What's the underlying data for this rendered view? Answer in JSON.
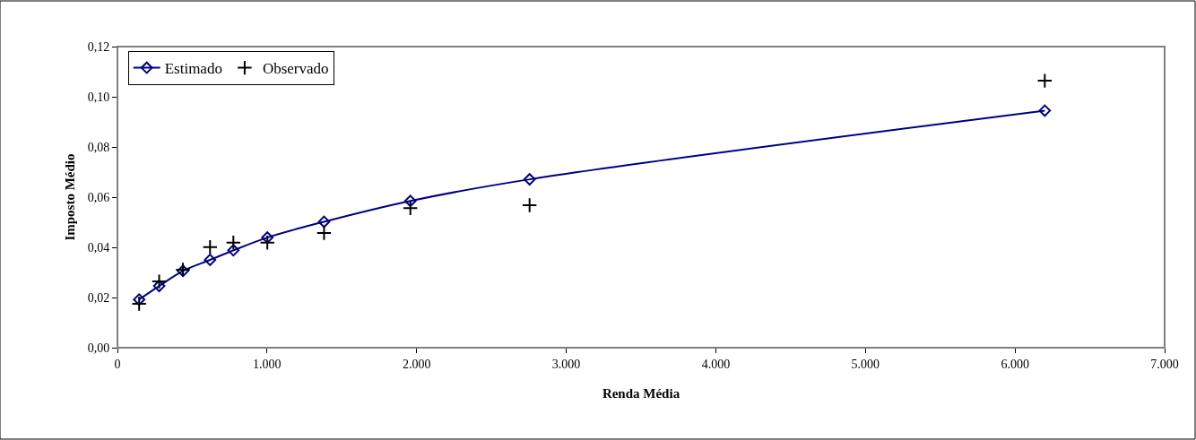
{
  "chart_data": {
    "type": "line",
    "xlabel": "Renda Média",
    "ylabel": "Imposto Médio",
    "x": [
      145,
      279,
      438,
      619,
      775,
      1002,
      1381,
      1958,
      2755,
      6199
    ],
    "series": [
      {
        "name": "Estimado",
        "color": "#000080",
        "marker": "diamond",
        "values": [
          0.0192,
          0.0246,
          0.0306,
          0.035,
          0.0388,
          0.0439,
          0.0502,
          0.0585,
          0.0671,
          0.0945
        ]
      },
      {
        "name": "Observado",
        "type": "scatter",
        "color": "#000000",
        "marker": "cross",
        "values": [
          0.0175,
          0.0264,
          0.0311,
          0.0401,
          0.0419,
          0.0419,
          0.0457,
          0.0556,
          0.0568,
          0.1064
        ]
      }
    ],
    "xlim": [
      0,
      7000
    ],
    "xticks": [
      0,
      {
        "value": 1000,
        "label": "1.000"
      },
      {
        "value": 2000,
        "label": "2.000"
      },
      {
        "value": 3000,
        "label": "3.000"
      },
      {
        "value": 4000,
        "label": "4.000"
      },
      {
        "value": 5000,
        "label": "5.000"
      },
      {
        "value": 6000,
        "label": "6.000"
      },
      {
        "value": 7000,
        "label": "7.000"
      }
    ],
    "ylim": [
      0,
      0.12
    ],
    "yticks": [
      {
        "value": 0,
        "label": "0,00"
      },
      {
        "value": 0.02,
        "label": "0,02"
      },
      {
        "value": 0.04,
        "label": "0,04"
      },
      {
        "value": 0.06,
        "label": "0,06"
      },
      {
        "value": 0.08,
        "label": "0,08"
      },
      {
        "value": 0.1,
        "label": "0,10"
      },
      {
        "value": 0.12,
        "label": "0,12"
      }
    ],
    "legend": "top left"
  }
}
